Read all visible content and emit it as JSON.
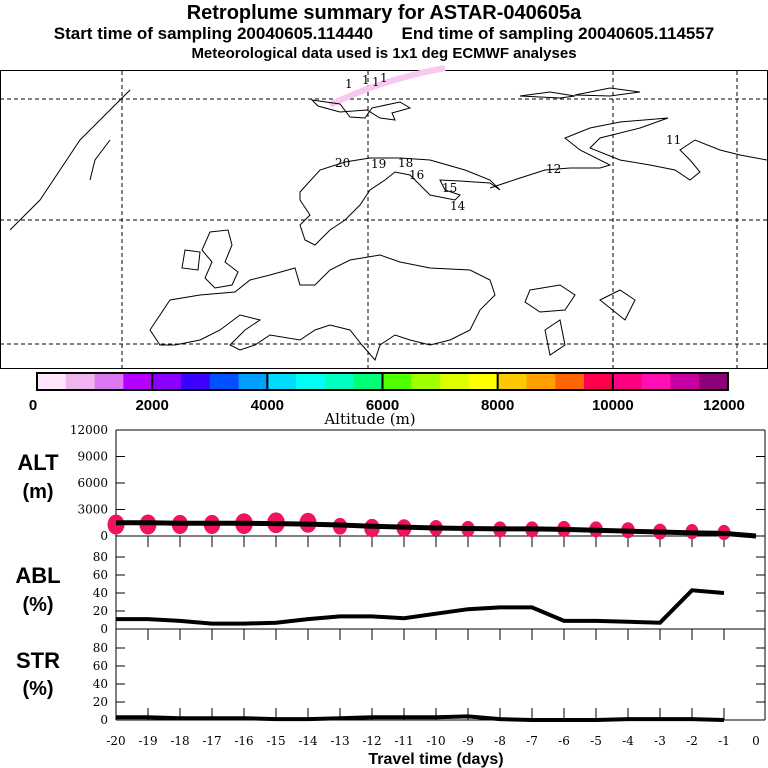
{
  "header": {
    "title": "Retroplume summary for ASTAR-040605a",
    "subtitle_start": "Start time of sampling 20040605.114440",
    "subtitle_end": "End time of sampling 20040605.114557",
    "subtitle_met": "Meteorological data used is 1x1 deg ECMWF analyses"
  },
  "map": {
    "labels": [
      "1",
      "1",
      "1",
      "1",
      "20",
      "19",
      "18",
      "16",
      "15",
      "14",
      "12",
      "11"
    ]
  },
  "colorbar": {
    "title": "Altitude (m)",
    "ticks": [
      "0",
      "2000",
      "4000",
      "6000",
      "8000",
      "10000",
      "12000"
    ],
    "colors": [
      "#ffe6ff",
      "#f0b4f0",
      "#dc78f0",
      "#b400ff",
      "#8c00ff",
      "#3c00ff",
      "#0050ff",
      "#00a0ff",
      "#00dcff",
      "#00fff0",
      "#00ffc0",
      "#00ff78",
      "#50ff00",
      "#a0ff00",
      "#dcff00",
      "#ffff00",
      "#ffc800",
      "#ffa000",
      "#ff6400",
      "#ff0050",
      "#ff0080",
      "#ff10b4",
      "#c800a0",
      "#8c0078"
    ]
  },
  "chart_data": [
    {
      "type": "line",
      "panel": "ALT",
      "ylabel": "ALT\n(m)",
      "ylabel_lines": [
        "ALT",
        "(m)"
      ],
      "ylim": [
        0,
        12000
      ],
      "yticks": [
        "0",
        "3000",
        "6000",
        "9000",
        "12000"
      ],
      "x": [
        -20,
        -19,
        -18,
        -17,
        -16,
        -15,
        -14,
        -13,
        -12,
        -11,
        -10,
        -9,
        -8,
        -7,
        -6,
        -5,
        -4,
        -3,
        -2,
        -1,
        0
      ],
      "values": [
        1500,
        1500,
        1450,
        1450,
        1450,
        1400,
        1350,
        1250,
        1100,
        1000,
        900,
        850,
        800,
        800,
        750,
        650,
        550,
        450,
        350,
        300,
        0
      ],
      "dots": {
        "color": "#f0145a",
        "x": [
          -20,
          -19,
          -18,
          -17,
          -16,
          -15,
          -14,
          -13,
          -12,
          -11,
          -10,
          -9,
          -8,
          -7,
          -6,
          -5,
          -4,
          -3,
          -2,
          -1
        ],
        "altitude": [
          1300,
          1300,
          1300,
          1300,
          1400,
          1500,
          1500,
          1100,
          900,
          900,
          900,
          800,
          750,
          750,
          800,
          750,
          650,
          500,
          500,
          400
        ],
        "relative_size": [
          1.0,
          1.0,
          0.9,
          0.9,
          1.1,
          1.1,
          1.0,
          0.6,
          0.8,
          0.7,
          0.5,
          0.5,
          0.5,
          0.5,
          0.5,
          0.5,
          0.5,
          0.5,
          0.4,
          0.4
        ]
      },
      "xlabel": "Travel time (days)"
    },
    {
      "type": "line",
      "panel": "ABL",
      "ylabel_lines": [
        "ABL",
        "(%)"
      ],
      "ylim": [
        0,
        80
      ],
      "yticks": [
        "0",
        "20",
        "40",
        "60",
        "80"
      ],
      "x": [
        -20,
        -19,
        -18,
        -17,
        -16,
        -15,
        -14,
        -13,
        -12,
        -11,
        -10,
        -9,
        -8,
        -7,
        -6,
        -5,
        -4,
        -3,
        -2,
        -1
      ],
      "values": [
        11,
        11,
        9,
        6,
        6,
        7,
        11,
        14,
        14,
        12,
        17,
        22,
        24,
        24,
        9,
        9,
        8,
        7,
        43,
        40
      ]
    },
    {
      "type": "line",
      "panel": "STR",
      "ylabel_lines": [
        "STR",
        "(%)"
      ],
      "ylim": [
        0,
        80
      ],
      "yticks": [
        "0",
        "20",
        "40",
        "60",
        "80"
      ],
      "x": [
        -20,
        -19,
        -18,
        -17,
        -16,
        -15,
        -14,
        -13,
        -12,
        -11,
        -10,
        -9,
        -8,
        -7,
        -6,
        -5,
        -4,
        -3,
        -2,
        -1
      ],
      "values": [
        3,
        3,
        2,
        2,
        2,
        1,
        1,
        2,
        3,
        3,
        3,
        4,
        1,
        0,
        0,
        0,
        1,
        1,
        1,
        0
      ],
      "xticks": [
        "-20",
        "-19",
        "-18",
        "-17",
        "-16",
        "-15",
        "-14",
        "-13",
        "-12",
        "-11",
        "-10",
        "-9",
        "-8",
        "-7",
        "-6",
        "-5",
        "-4",
        "-3",
        "-2",
        "-1",
        "0"
      ],
      "xlabel": "Travel time (days)"
    }
  ]
}
